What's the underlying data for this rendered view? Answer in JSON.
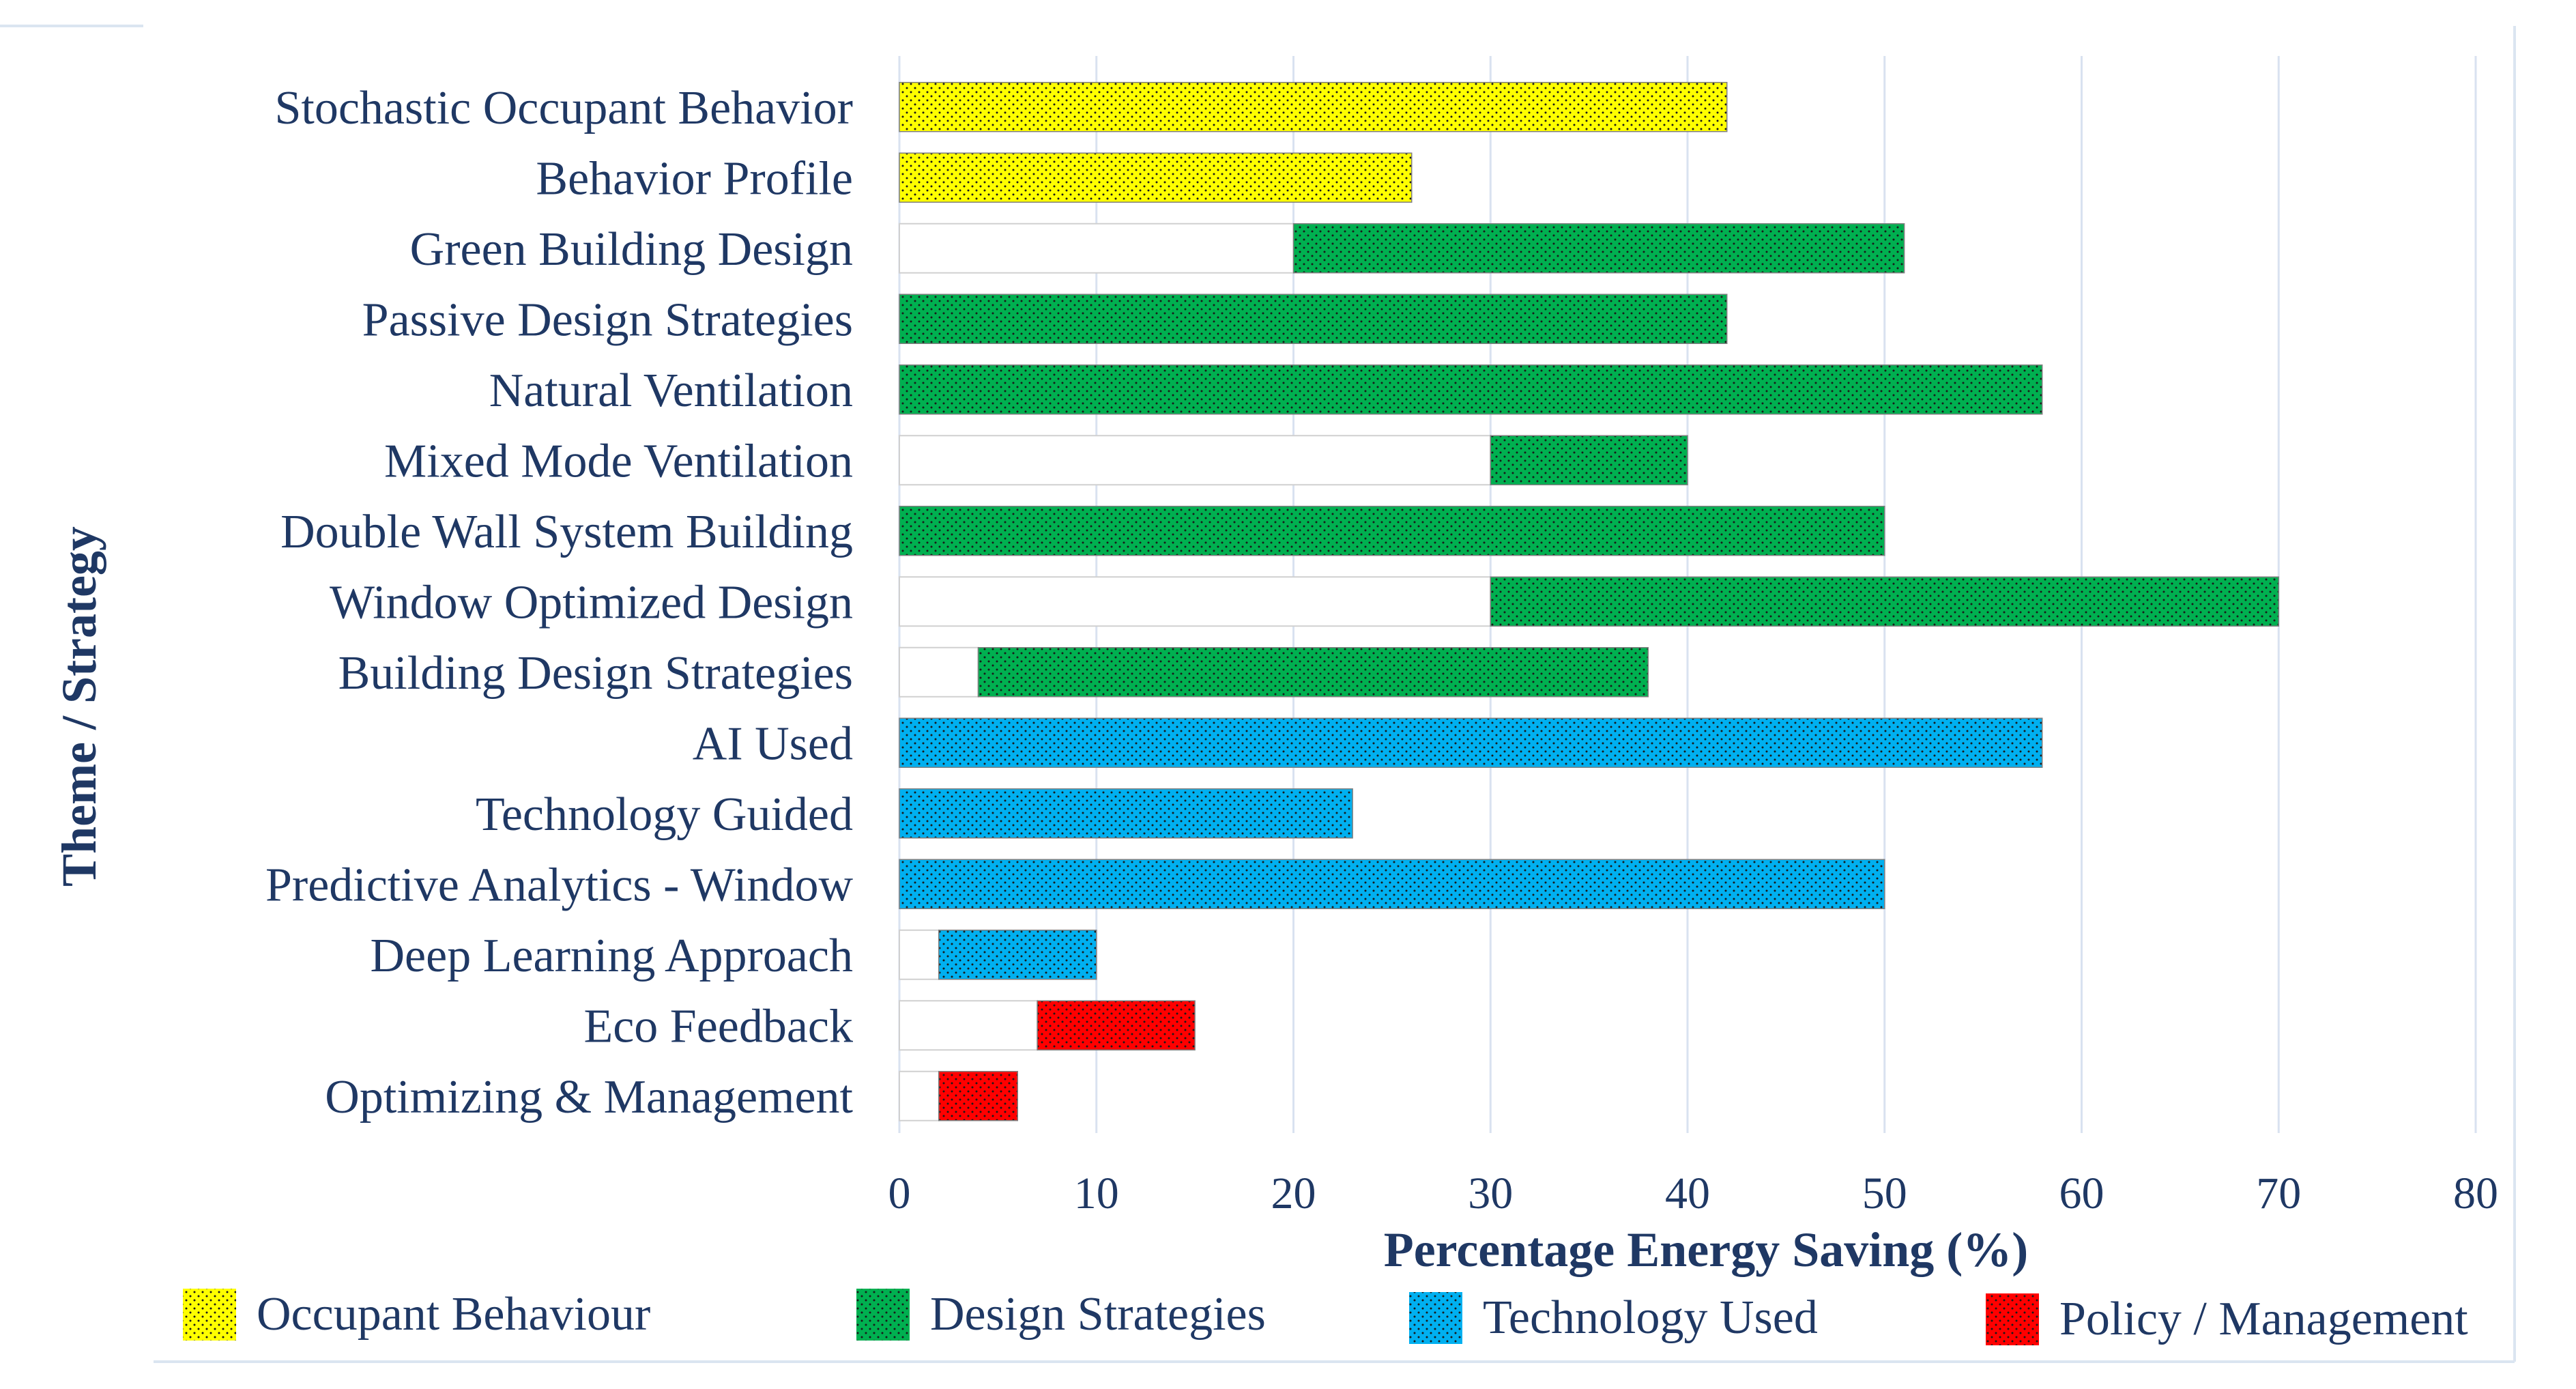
{
  "colors": {
    "text": "#1f3864",
    "grid": "#d9e2f0",
    "frame": "#dbe5f1",
    "base_bar_fill": "#ffffff",
    "base_bar_stroke": "#d0d0d0",
    "dot": "#1a1a1a"
  },
  "chart_data": {
    "type": "bar",
    "orientation": "horizontal",
    "stacked": true,
    "xlabel": "Percentage Energy Saving (%)",
    "ylabel": "Theme / Strategy",
    "xlim": [
      0,
      80
    ],
    "x_ticks": [
      0,
      10,
      20,
      30,
      40,
      50,
      60,
      70,
      80
    ],
    "x_tick_labels": [
      "0",
      "10",
      "20",
      "30",
      "40",
      "50",
      "60",
      "70",
      "80"
    ],
    "grid": "vertical",
    "legend_position": "bottom",
    "groups": [
      {
        "key": "occupant",
        "name": "Occupant Behaviour",
        "color": "#ffff00"
      },
      {
        "key": "design",
        "name": "Design Strategies",
        "color": "#00b050"
      },
      {
        "key": "tech",
        "name": "Technology Used",
        "color": "#00b0f0"
      },
      {
        "key": "policy",
        "name": "Policy / Management",
        "color": "#ff0000"
      }
    ],
    "categories": [
      "Stochastic Occupant Behavior",
      "Behavior Profile",
      "Green Building Design",
      "Passive Design Strategies",
      "Natural Ventilation",
      "Mixed Mode Ventilation",
      "Double Wall System Building",
      "Window Optimized Design",
      "Building Design Strategies",
      "AI Used",
      "Technology Guided",
      "Predictive Analytics - Window",
      "Deep Learning Approach",
      "Eco Feedback",
      "Optimizing & Management"
    ],
    "bars": [
      {
        "category": "Stochastic Occupant Behavior",
        "group": "occupant",
        "min": 0,
        "max": 42
      },
      {
        "category": "Behavior Profile",
        "group": "occupant",
        "min": 0,
        "max": 26
      },
      {
        "category": "Green Building Design",
        "group": "design",
        "min": 20,
        "max": 51
      },
      {
        "category": "Passive Design Strategies",
        "group": "design",
        "min": 0,
        "max": 42
      },
      {
        "category": "Natural Ventilation",
        "group": "design",
        "min": 0,
        "max": 58
      },
      {
        "category": "Mixed Mode Ventilation",
        "group": "design",
        "min": 30,
        "max": 40
      },
      {
        "category": "Double Wall System Building",
        "group": "design",
        "min": 0,
        "max": 50
      },
      {
        "category": "Window Optimized Design",
        "group": "design",
        "min": 30,
        "max": 70
      },
      {
        "category": "Building Design Strategies",
        "group": "design",
        "min": 4,
        "max": 38
      },
      {
        "category": "AI Used",
        "group": "tech",
        "min": 0,
        "max": 58
      },
      {
        "category": "Technology Guided",
        "group": "tech",
        "min": 0,
        "max": 23
      },
      {
        "category": "Predictive Analytics - Window",
        "group": "tech",
        "min": 0,
        "max": 50
      },
      {
        "category": "Deep Learning Approach",
        "group": "tech",
        "min": 2,
        "max": 10
      },
      {
        "category": "Eco Feedback",
        "group": "policy",
        "min": 7,
        "max": 15
      },
      {
        "category": "Optimizing & Management",
        "group": "policy",
        "min": 2,
        "max": 6
      }
    ]
  }
}
